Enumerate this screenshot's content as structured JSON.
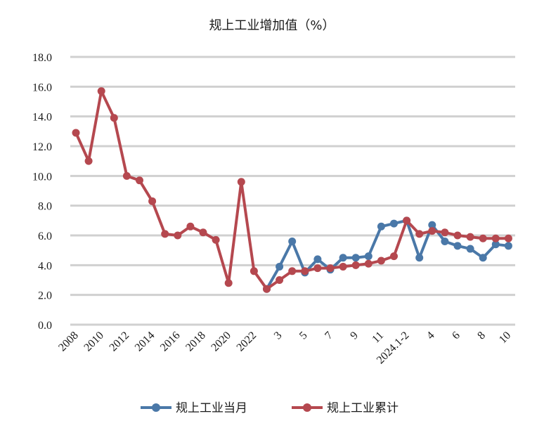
{
  "chart_data": {
    "type": "line",
    "title": "规上工业增加值（%）",
    "xlabel": "",
    "ylabel": "",
    "ylim": [
      0,
      18
    ],
    "yticks": [
      "0.0",
      "2.0",
      "4.0",
      "6.0",
      "8.0",
      "10.0",
      "12.0",
      "14.0",
      "16.0",
      "18.0"
    ],
    "grid": true,
    "legend_position": "bottom",
    "categories": [
      "2008",
      "",
      "2010",
      "",
      "2012",
      "",
      "2014",
      "",
      "2016",
      "",
      "2018",
      "",
      "2020",
      "",
      "2022",
      "",
      "3",
      "",
      "5",
      "",
      "7",
      "",
      "9",
      "",
      "11",
      "",
      "2024.1-2",
      "",
      "4",
      "",
      "6",
      "",
      "8",
      "",
      "10"
    ],
    "series": [
      {
        "name": "规上工业当月",
        "color": "#4a78a8",
        "values": [
          null,
          null,
          null,
          null,
          null,
          null,
          null,
          null,
          null,
          null,
          null,
          null,
          null,
          null,
          null,
          2.4,
          3.9,
          5.6,
          3.5,
          4.4,
          3.7,
          4.5,
          4.5,
          4.6,
          6.6,
          6.8,
          7.0,
          4.5,
          6.7,
          5.6,
          5.3,
          5.1,
          4.5,
          5.4,
          5.3
        ]
      },
      {
        "name": "规上工业累计",
        "color": "#b5484f",
        "values": [
          12.9,
          11.0,
          15.7,
          13.9,
          10.0,
          9.7,
          8.3,
          6.1,
          6.0,
          6.6,
          6.2,
          5.7,
          2.8,
          9.6,
          3.6,
          2.4,
          3.0,
          3.6,
          3.6,
          3.8,
          3.8,
          3.9,
          4.0,
          4.1,
          4.3,
          4.6,
          7.0,
          6.1,
          6.3,
          6.2,
          6.0,
          5.9,
          5.8,
          5.8,
          5.8
        ]
      }
    ]
  }
}
